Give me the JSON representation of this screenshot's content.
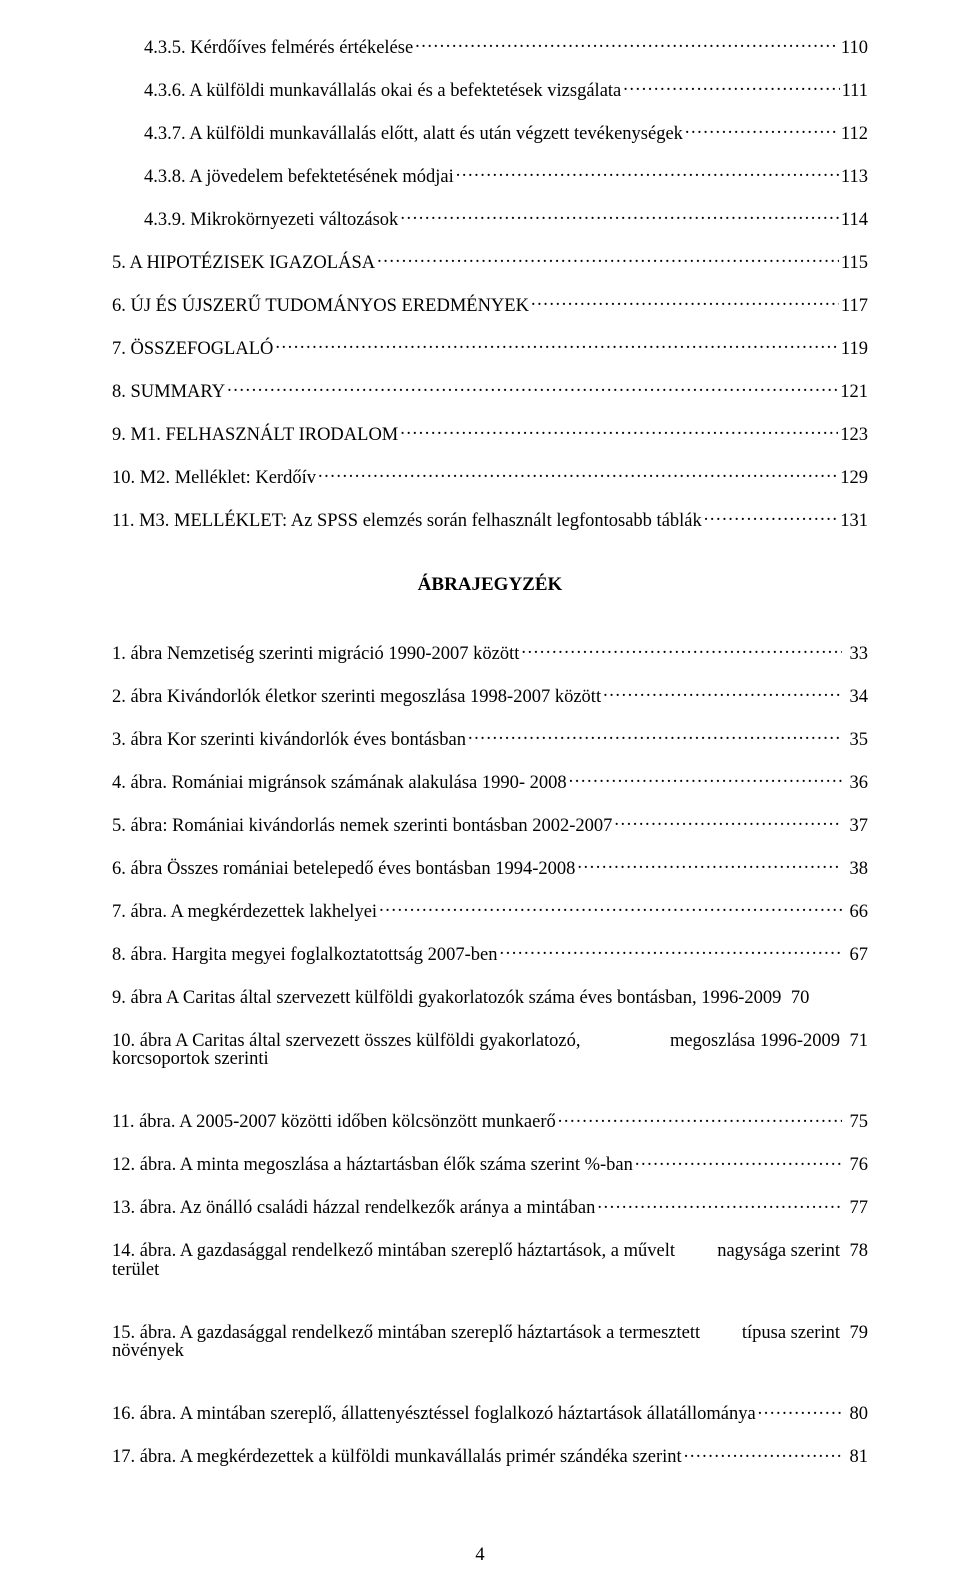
{
  "toc_top": [
    {
      "text": "4.3.5. Kérdőíves felmérés értékelése",
      "page": "110",
      "indent": true
    },
    {
      "text": "4.3.6. A külföldi munkavállalás okai és a befektetések vizsgálata",
      "page": "111",
      "indent": true
    },
    {
      "text": "4.3.7. A külföldi munkavállalás előtt, alatt és után végzett tevékenységek",
      "page": "112",
      "indent": true
    },
    {
      "text": "4.3.8. A jövedelem befektetésének módjai",
      "page": "113",
      "indent": true
    },
    {
      "text": "4.3.9. Mikrokörnyezeti változások",
      "page": "114",
      "indent": true
    },
    {
      "text": "5. A HIPOTÉZISEK IGAZOLÁSA",
      "page": "115",
      "indent": false
    },
    {
      "text": "6. ÚJ ÉS ÚJSZERŰ TUDOMÁNYOS EREDMÉNYEK",
      "page": "117",
      "indent": false
    },
    {
      "text": "7. ÖSSZEFOGLALÓ",
      "page": "119",
      "indent": false
    },
    {
      "text": "8. SUMMARY",
      "page": "121",
      "indent": false
    },
    {
      "text": "9. M1. FELHASZNÁLT IRODALOM",
      "page": "123",
      "indent": false
    },
    {
      "text": "10. M2. Melléklet: Kerdőív",
      "page": "129",
      "indent": false
    },
    {
      "text": "11. M3. MELLÉKLET: Az SPSS elemzés során felhasznált legfontosabb táblák",
      "page": "131",
      "indent": false
    }
  ],
  "heading": "ÁBRAJEGYZÉK",
  "figures": [
    {
      "text": "1. ábra Nemzetiség szerinti migráció 1990-2007 között",
      "page": "33"
    },
    {
      "text": "2. ábra Kivándorlók életkor szerinti megoszlása 1998-2007 között",
      "page": "34"
    },
    {
      "text": "3. ábra Kor szerinti kivándorlók éves bontásban",
      "page": "35"
    },
    {
      "text": "4. ábra. Romániai migránsok számának alakulása 1990- 2008",
      "page": "36"
    },
    {
      "text": "5. ábra: Romániai kivándorlás nemek szerinti bontásban 2002-2007",
      "page": "37"
    },
    {
      "text": "6. ábra Összes romániai betelepedő éves bontásban 1994-2008",
      "page": "38"
    },
    {
      "text": "7. ábra. A megkérdezettek lakhelyei",
      "page": "66"
    },
    {
      "text": "8. ábra. Hargita megyei foglalkoztatottság 2007-ben",
      "page": "67"
    },
    {
      "text": "9. ábra A Caritas által szervezett külföldi gyakorlatozók száma éves bontásban, 1996-2009",
      "page": "70",
      "noleader": true
    },
    {
      "wrapTop": "10. ábra  A Caritas által szervezett  összes külföldi gyakorlatozó, korcsoportok szerinti",
      "wrapBottom": "megoszlása 1996-2009",
      "page": "71"
    },
    {
      "text": "11. ábra. A 2005-2007 közötti időben kölcsönzött munkaerő",
      "page": "75"
    },
    {
      "text": "12. ábra. A minta megoszlása a háztartásban élők száma szerint %-ban",
      "page": "76"
    },
    {
      "text": "13. ábra. Az önálló családi házzal rendelkezők aránya a mintában",
      "page": "77"
    },
    {
      "wrapTop": "14. ábra. A gazdasággal rendelkező mintában szereplő háztartások, a művelt terület",
      "wrapBottom": "nagysága szerint",
      "page": "78"
    },
    {
      "wrapTop": "15. ábra. A gazdasággal rendelkező mintában szereplő háztartások a termesztett növények",
      "wrapBottom": "típusa szerint",
      "page": "79"
    },
    {
      "text": "16. ábra. A mintában szereplő, állattenyésztéssel foglalkozó háztartások állatállománya",
      "page": "80",
      "tight": true
    },
    {
      "text": "17. ábra. A megkérdezettek a külföldi munkavállalás primér szándéka szerint",
      "page": "81"
    }
  ],
  "page_number": "4"
}
